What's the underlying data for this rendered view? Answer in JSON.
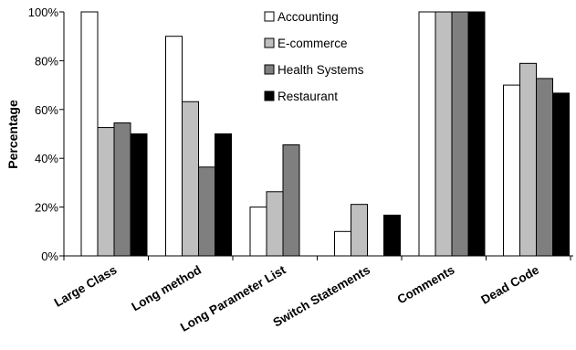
{
  "chart_data": {
    "type": "bar",
    "title": "",
    "xlabel": "",
    "ylabel": "Percentage",
    "ylim": [
      0,
      100
    ],
    "yticks": [
      0,
      20,
      40,
      60,
      80,
      100
    ],
    "ytick_labels": [
      "0%",
      "20%",
      "40%",
      "60%",
      "80%",
      "100%"
    ],
    "categories": [
      "Large Class",
      "Long method",
      "Long Parameter List",
      "Switch Statements",
      "Comments",
      "Dead Code"
    ],
    "series": [
      {
        "name": "Accounting",
        "color": "#ffffff",
        "values": [
          100,
          90,
          20,
          10,
          100,
          70
        ]
      },
      {
        "name": "E-commerce",
        "color": "#bfbfbf",
        "values": [
          52.6,
          63.2,
          26.3,
          21.1,
          100,
          78.9
        ]
      },
      {
        "name": "Health Systems",
        "color": "#7f7f7f",
        "values": [
          54.5,
          36.4,
          45.5,
          0,
          100,
          72.7
        ]
      },
      {
        "name": "Restaurant",
        "color": "#000000",
        "values": [
          50,
          50,
          0,
          16.7,
          100,
          66.7
        ]
      }
    ],
    "legend_position": "top-center",
    "grid": false
  }
}
